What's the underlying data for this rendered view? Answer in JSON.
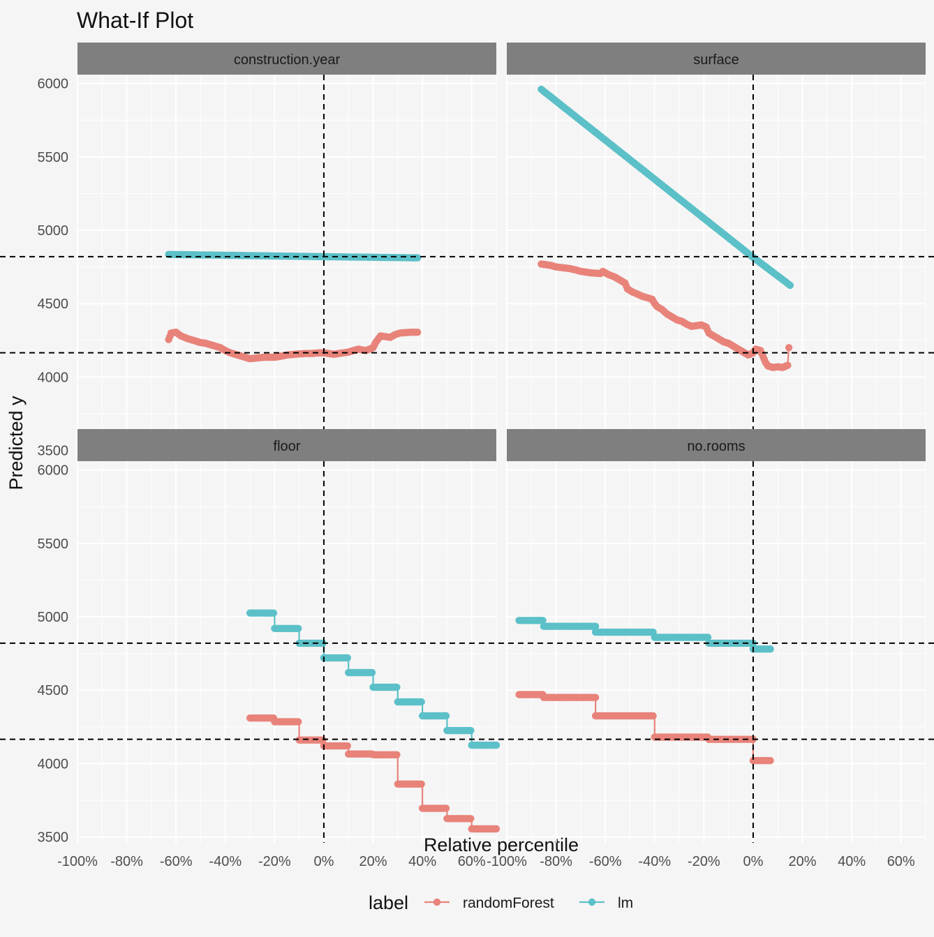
{
  "chart_data": {
    "type": "line",
    "title": "What-If Plot",
    "xlabel": "Relative percentile",
    "ylabel": "Predicted y",
    "xlim": [
      -100,
      70
    ],
    "ylim": [
      3460,
      6060
    ],
    "x_ticks": [
      "-100%",
      "-80%",
      "-60%",
      "-40%",
      "-20%",
      "0%",
      "20%",
      "40%",
      "60%"
    ],
    "y_ticks": [
      "3500",
      "4000",
      "4500",
      "5000",
      "5500",
      "6000"
    ],
    "legend": {
      "title": "label",
      "position": "bottom",
      "items": [
        {
          "name": "randomForest",
          "color": "#e8837a"
        },
        {
          "name": "lm",
          "color": "#5cc0c8"
        }
      ]
    },
    "reference_lines": {
      "x": 0,
      "y": [
        4820,
        4165
      ]
    },
    "grid": true,
    "series_colors": {
      "randomForest": "#e8837a",
      "lm": "#5cc0c8"
    },
    "panels": [
      {
        "name": "construction.year",
        "series": [
          {
            "name": "randomForest",
            "points": [
              [
                -63,
                4255
              ],
              [
                -62,
                4300
              ],
              [
                -60,
                4305
              ],
              [
                -58,
                4280
              ],
              [
                -55,
                4260
              ],
              [
                -52,
                4245
              ],
              [
                -50,
                4235
              ],
              [
                -48,
                4230
              ],
              [
                -46,
                4220
              ],
              [
                -44,
                4210
              ],
              [
                -42,
                4200
              ],
              [
                -40,
                4180
              ],
              [
                -38,
                4165
              ],
              [
                -35,
                4150
              ],
              [
                -32,
                4135
              ],
              [
                -30,
                4125
              ],
              [
                -27,
                4130
              ],
              [
                -24,
                4135
              ],
              [
                -20,
                4135
              ],
              [
                -18,
                4140
              ],
              [
                -15,
                4150
              ],
              [
                -12,
                4155
              ],
              [
                -8,
                4160
              ],
              [
                -5,
                4160
              ],
              [
                -2,
                4165
              ],
              [
                0,
                4165
              ],
              [
                2,
                4160
              ],
              [
                4,
                4155
              ],
              [
                6,
                4160
              ],
              [
                8,
                4165
              ],
              [
                10,
                4170
              ],
              [
                12,
                4180
              ],
              [
                14,
                4190
              ],
              [
                17,
                4180
              ],
              [
                20,
                4200
              ],
              [
                21,
                4235
              ],
              [
                23,
                4280
              ],
              [
                25,
                4275
              ],
              [
                27,
                4270
              ],
              [
                29,
                4290
              ],
              [
                31,
                4300
              ],
              [
                35,
                4305
              ],
              [
                38,
                4305
              ]
            ]
          },
          {
            "name": "lm",
            "points": [
              [
                -63,
                4835
              ],
              [
                0,
                4820
              ],
              [
                38,
                4812
              ]
            ]
          }
        ]
      },
      {
        "name": "surface",
        "series": [
          {
            "name": "randomForest",
            "points": [
              [
                -86,
                4770
              ],
              [
                -82,
                4760
              ],
              [
                -80,
                4750
              ],
              [
                -75,
                4740
              ],
              [
                -72,
                4730
              ],
              [
                -70,
                4720
              ],
              [
                -66,
                4710
              ],
              [
                -62,
                4705
              ],
              [
                -61,
                4720
              ],
              [
                -59,
                4700
              ],
              [
                -56,
                4680
              ],
              [
                -54,
                4660
              ],
              [
                -52,
                4640
              ],
              [
                -51,
                4600
              ],
              [
                -49,
                4580
              ],
              [
                -47,
                4565
              ],
              [
                -45,
                4550
              ],
              [
                -43,
                4540
              ],
              [
                -41,
                4530
              ],
              [
                -40,
                4500
              ],
              [
                -39,
                4480
              ],
              [
                -37,
                4460
              ],
              [
                -35,
                4430
              ],
              [
                -33,
                4410
              ],
              [
                -31,
                4390
              ],
              [
                -29,
                4380
              ],
              [
                -27,
                4360
              ],
              [
                -25,
                4345
              ],
              [
                -23,
                4350
              ],
              [
                -21,
                4355
              ],
              [
                -19,
                4340
              ],
              [
                -18,
                4300
              ],
              [
                -16,
                4280
              ],
              [
                -14,
                4260
              ],
              [
                -12,
                4240
              ],
              [
                -10,
                4230
              ],
              [
                -8,
                4210
              ],
              [
                -6,
                4190
              ],
              [
                -4,
                4170
              ],
              [
                -2,
                4150
              ],
              [
                0,
                4165
              ],
              [
                1,
                4190
              ],
              [
                3,
                4180
              ],
              [
                4,
                4140
              ],
              [
                5,
                4100
              ],
              [
                6,
                4075
              ],
              [
                8,
                4065
              ],
              [
                10,
                4070
              ],
              [
                12,
                4065
              ],
              [
                14,
                4080
              ],
              [
                14.5,
                4200
              ]
            ]
          },
          {
            "name": "lm",
            "points": [
              [
                -86,
                5960
              ],
              [
                0,
                4815
              ],
              [
                15,
                4625
              ]
            ]
          }
        ]
      },
      {
        "name": "floor",
        "series": [
          {
            "name": "randomForest",
            "type": "step",
            "points": [
              [
                -30,
                4310
              ],
              [
                -20,
                4285
              ],
              [
                -10,
                4160
              ],
              [
                0,
                4120
              ],
              [
                10,
                4065
              ],
              [
                20,
                4060
              ],
              [
                30,
                3860
              ],
              [
                40,
                3695
              ],
              [
                50,
                3625
              ],
              [
                60,
                3555
              ],
              [
                70,
                3555
              ]
            ]
          },
          {
            "name": "lm",
            "type": "step",
            "points": [
              [
                -30,
                5025
              ],
              [
                -20,
                4920
              ],
              [
                -10,
                4820
              ],
              [
                0,
                4720
              ],
              [
                10,
                4620
              ],
              [
                20,
                4520
              ],
              [
                30,
                4420
              ],
              [
                40,
                4325
              ],
              [
                50,
                4225
              ],
              [
                60,
                4125
              ],
              [
                70,
                4125
              ]
            ]
          }
        ]
      },
      {
        "name": "no.rooms",
        "series": [
          {
            "name": "randomForest",
            "type": "step",
            "points": [
              [
                -95,
                4470
              ],
              [
                -85,
                4450
              ],
              [
                -64,
                4325
              ],
              [
                -40,
                4180
              ],
              [
                -18,
                4165
              ],
              [
                0,
                4020
              ],
              [
                7,
                4020
              ]
            ]
          },
          {
            "name": "lm",
            "type": "step",
            "points": [
              [
                -95,
                4975
              ],
              [
                -85,
                4935
              ],
              [
                -64,
                4895
              ],
              [
                -40,
                4860
              ],
              [
                -18,
                4820
              ],
              [
                0,
                4780
              ],
              [
                7,
                4780
              ]
            ]
          }
        ]
      }
    ]
  }
}
